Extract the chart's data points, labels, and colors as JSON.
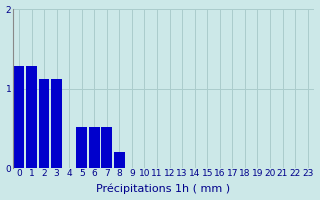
{
  "values": [
    1.28,
    1.28,
    1.12,
    1.12,
    0.0,
    0.52,
    0.52,
    0.52,
    0.2,
    0.0,
    0.0,
    0.0,
    0.0,
    0.0,
    0.0,
    0.0,
    0.0,
    0.0,
    0.0,
    0.0,
    0.0,
    0.0,
    0.0,
    0.0
  ],
  "bar_color": "#0000cc",
  "bg_color": "#cce8e8",
  "grid_color": "#aacccc",
  "xlabel": "Précipitations 1h ( mm )",
  "xlabel_color": "#00008b",
  "tick_color": "#00008b",
  "ylim": [
    0,
    2
  ],
  "yticks": [
    0,
    1,
    2
  ],
  "xlabel_fontsize": 8,
  "tick_fontsize": 6.5
}
